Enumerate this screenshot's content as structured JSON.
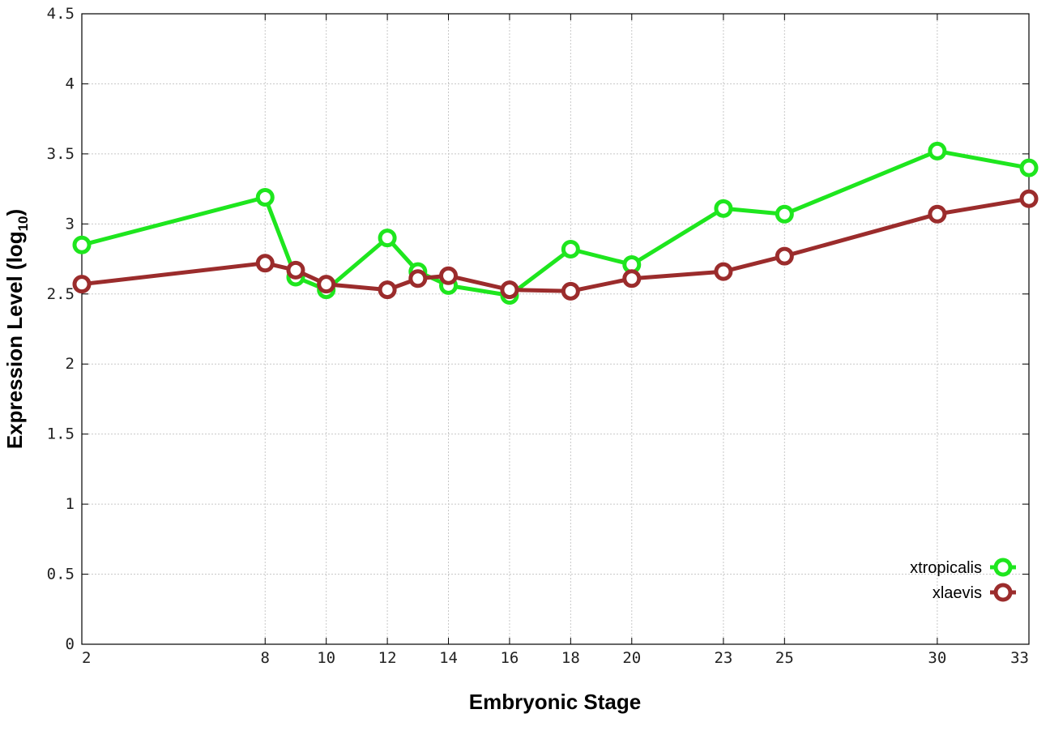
{
  "chart_data": {
    "type": "line",
    "xlabel": "Embryonic Stage",
    "ylabel": "Expression Level (log",
    "ylabel_sub": "10",
    "ylabel_close": ")",
    "ylim": [
      0,
      4.5
    ],
    "y_ticks": [
      0,
      0.5,
      1,
      1.5,
      2,
      2.5,
      3,
      3.5,
      4,
      4.5
    ],
    "y_tick_labels": [
      "0",
      "0.5",
      "1",
      "1.5",
      "2",
      "2.5",
      "3",
      "3.5",
      "4",
      "4.5"
    ],
    "xlim": [
      2,
      33
    ],
    "x_ticks": [
      2,
      8,
      10,
      12,
      14,
      16,
      18,
      20,
      23,
      25,
      30,
      33
    ],
    "x_tick_labels": [
      "2",
      "8",
      "10",
      "12",
      "14",
      "16",
      "18",
      "20",
      "23",
      "25",
      "30",
      "33"
    ],
    "grid": true,
    "legend_position": "bottom-right",
    "series": [
      {
        "name": "xtropicalis",
        "color": "#1ee61e",
        "x": [
          2,
          8,
          9,
          10,
          12,
          13,
          14,
          16,
          18,
          20,
          23,
          25,
          30,
          33
        ],
        "values": [
          2.85,
          3.19,
          2.62,
          2.53,
          2.9,
          2.66,
          2.56,
          2.49,
          2.82,
          2.71,
          3.11,
          3.07,
          3.52,
          3.4
        ]
      },
      {
        "name": "xlaevis",
        "color": "#9b2c2c",
        "x": [
          2,
          8,
          9,
          10,
          12,
          13,
          14,
          16,
          18,
          20,
          23,
          25,
          30,
          33
        ],
        "values": [
          2.57,
          2.72,
          2.67,
          2.57,
          2.53,
          2.61,
          2.63,
          2.53,
          2.52,
          2.61,
          2.66,
          2.77,
          3.07,
          3.18
        ]
      }
    ]
  }
}
